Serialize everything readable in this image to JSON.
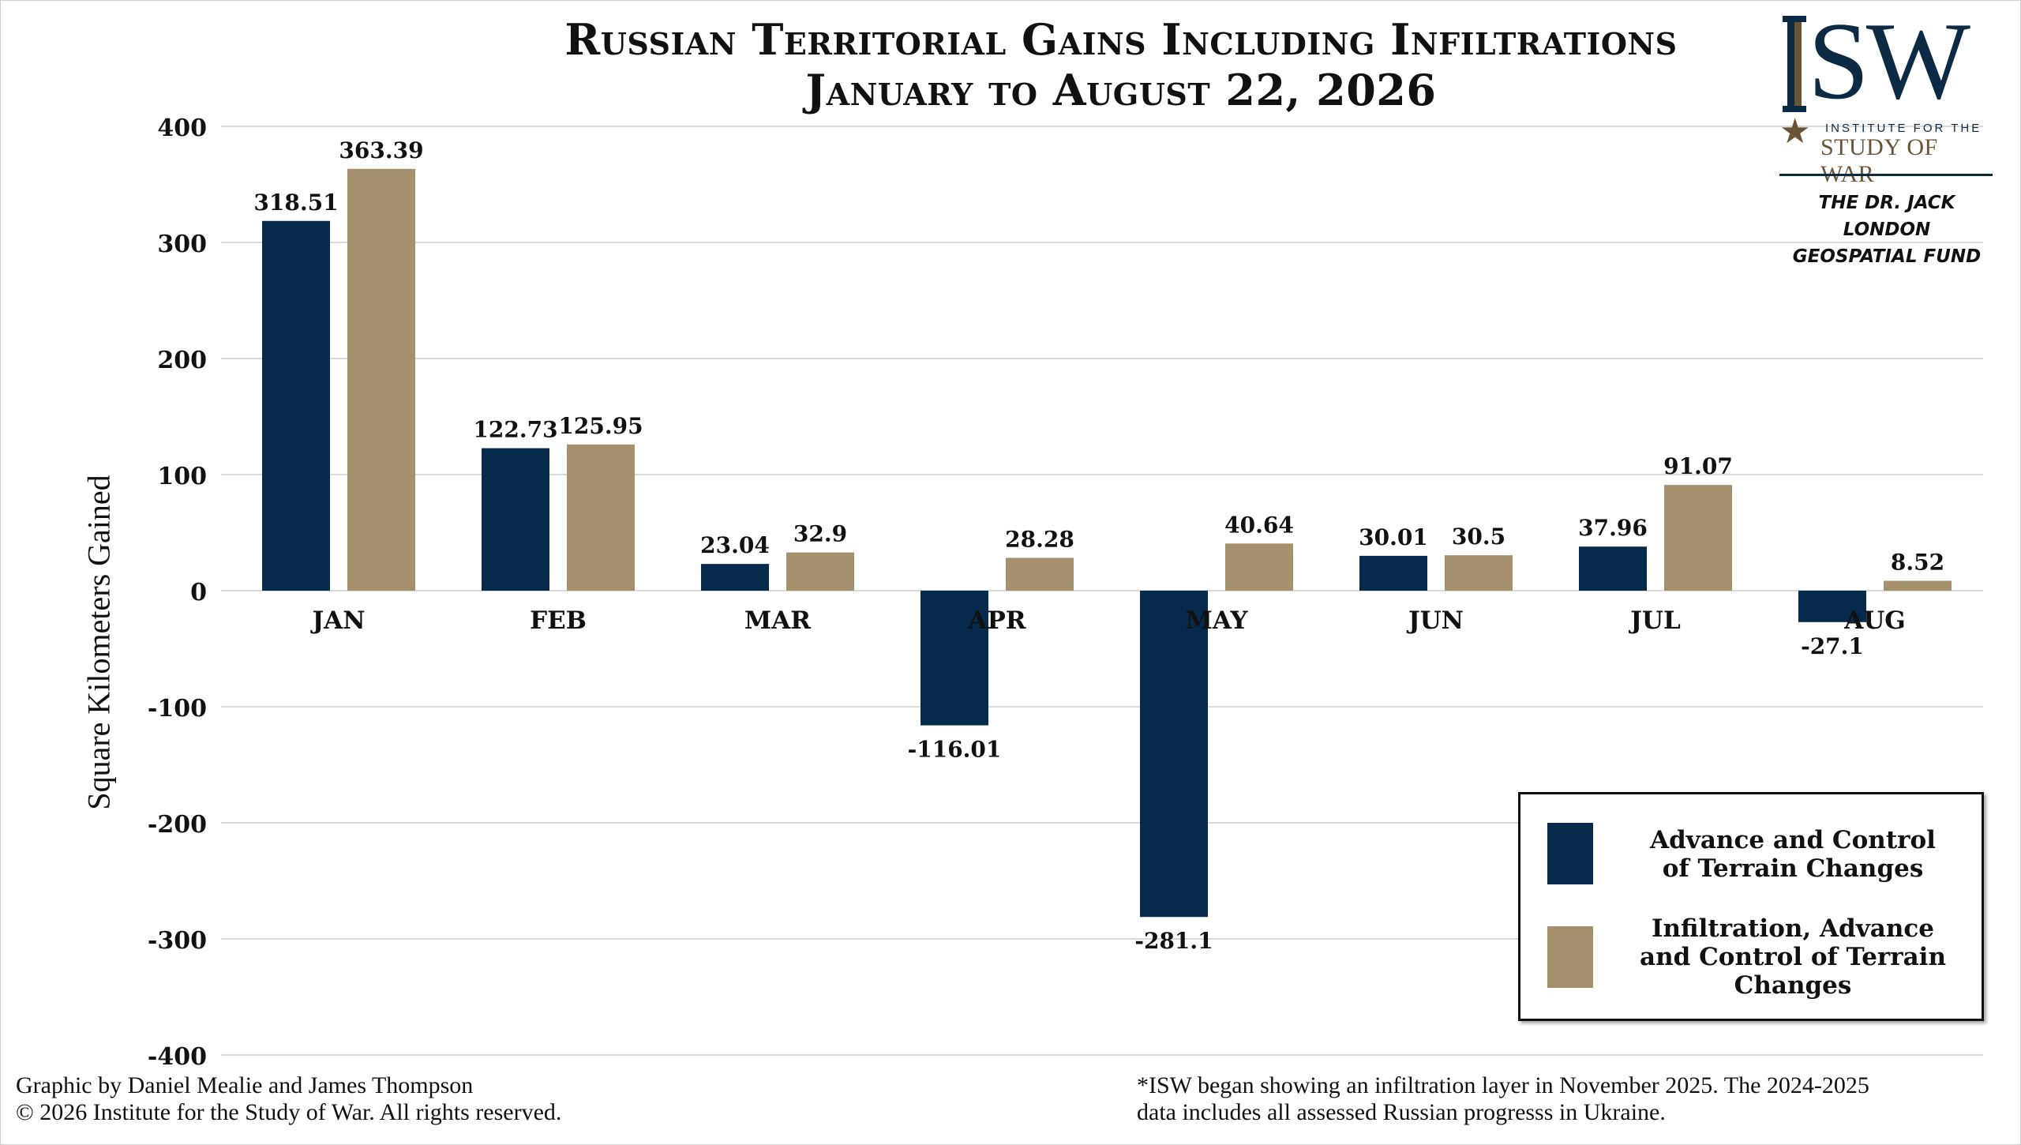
{
  "chart_data": {
    "type": "bar",
    "title": "Russian Territorial Gains Including Infiltrations",
    "subtitle": "January to August 22, 2026",
    "ylabel": "Square Kilometers Gained",
    "xlabel": "",
    "ylim": [
      -400,
      400
    ],
    "yticks": [
      400,
      300,
      200,
      100,
      0,
      -100,
      -200,
      -300,
      -400
    ],
    "categories": [
      "JAN",
      "FEB",
      "MAR",
      "APR",
      "MAY",
      "JUN",
      "JUL",
      "AUG"
    ],
    "series": [
      {
        "name": "Advance and Control of Terrain Changes",
        "color": "#062a4b",
        "values": [
          318.51,
          122.73,
          23.04,
          -116.01,
          -281.1,
          30.01,
          37.96,
          -27.1
        ]
      },
      {
        "name": "Infiltration, Advance and Control of Terrain Changes",
        "color": "#a6916f",
        "values": [
          363.39,
          125.95,
          32.9,
          28.28,
          40.64,
          30.5,
          91.07,
          8.52
        ]
      }
    ],
    "grid": true,
    "legend_position": "bottom-right"
  },
  "legend": {
    "line1": [
      "Advance and Control",
      "of Terrain Changes"
    ],
    "line2": [
      "Infiltration, Advance",
      "and Control of Terrain",
      "Changes"
    ]
  },
  "logo": {
    "wordmark": "ISW",
    "sub_small": "INSTITUTE FOR THE",
    "sub_large": "STUDY OF WAR",
    "fund_line1": "THE DR. JACK LONDON",
    "fund_line2": "GEOSPATIAL FUND"
  },
  "footer": {
    "left_line1": "Graphic by Daniel Mealie and James Thompson",
    "left_line2": "© 2026 Institute for the Study of War. All rights reserved.",
    "right_line1": "*ISW began showing an infiltration layer in November 2025. The 2024-2025",
    "right_line2": "data includes all assessed Russian progresss in Ukraine."
  },
  "colors": {
    "navy": "#062a4b",
    "tan": "#a6916f",
    "brand_brown": "#6b5436"
  }
}
